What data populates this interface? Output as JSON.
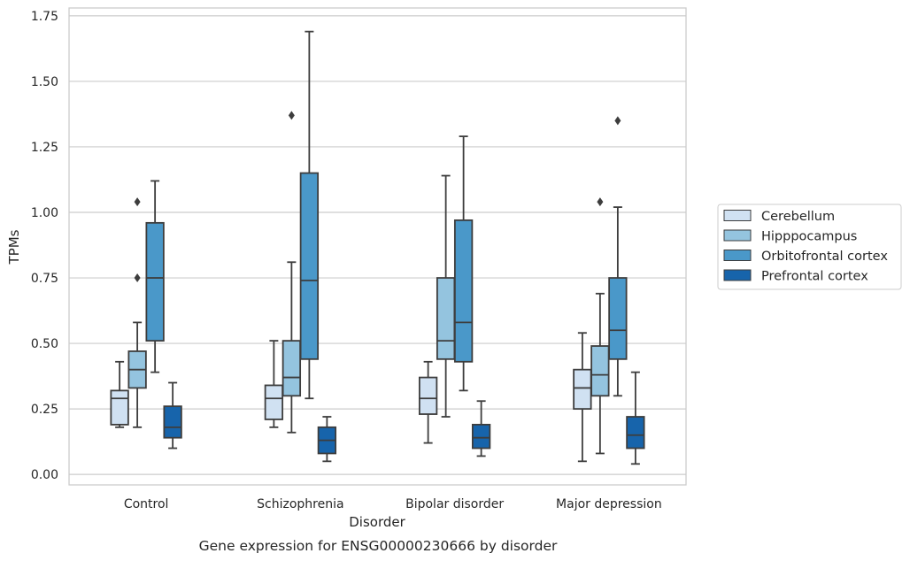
{
  "chart_data": {
    "type": "box",
    "caption": "Gene expression for ENSG00000230666 by disorder",
    "xlabel": "Disorder",
    "ylabel": "TPMs",
    "ylim": [
      -0.04,
      1.78
    ],
    "yticks": [
      0.0,
      0.25,
      0.5,
      0.75,
      1.0,
      1.25,
      1.5,
      1.75
    ],
    "ytick_labels": [
      "0.00",
      "0.25",
      "0.50",
      "0.75",
      "1.00",
      "1.25",
      "1.50",
      "1.75"
    ],
    "grid": "horizontal",
    "legend_position": "right",
    "categories": [
      "Control",
      "Schizophrenia",
      "Bipolar disorder",
      "Major depression"
    ],
    "series": [
      {
        "name": "Cerebellum",
        "color": "#d0e1f2",
        "boxes": [
          {
            "whislo": 0.18,
            "q1": 0.19,
            "med": 0.29,
            "q3": 0.32,
            "whishi": 0.43,
            "fliers": []
          },
          {
            "whislo": 0.18,
            "q1": 0.21,
            "med": 0.29,
            "q3": 0.34,
            "whishi": 0.51,
            "fliers": []
          },
          {
            "whislo": 0.12,
            "q1": 0.23,
            "med": 0.29,
            "q3": 0.37,
            "whishi": 0.43,
            "fliers": []
          },
          {
            "whislo": 0.05,
            "q1": 0.25,
            "med": 0.33,
            "q3": 0.4,
            "whishi": 0.54,
            "fliers": []
          }
        ]
      },
      {
        "name": "Hipppocampus",
        "color": "#94c4df",
        "boxes": [
          {
            "whislo": 0.18,
            "q1": 0.33,
            "med": 0.4,
            "q3": 0.47,
            "whishi": 0.58,
            "fliers": [
              0.75,
              1.04
            ]
          },
          {
            "whislo": 0.16,
            "q1": 0.3,
            "med": 0.37,
            "q3": 0.51,
            "whishi": 0.81,
            "fliers": [
              1.37
            ]
          },
          {
            "whislo": 0.22,
            "q1": 0.44,
            "med": 0.51,
            "q3": 0.75,
            "whishi": 1.14,
            "fliers": []
          },
          {
            "whislo": 0.08,
            "q1": 0.3,
            "med": 0.38,
            "q3": 0.49,
            "whishi": 0.69,
            "fliers": [
              1.04
            ]
          }
        ]
      },
      {
        "name": "Orbitofrontal cortex",
        "color": "#4a98c9",
        "boxes": [
          {
            "whislo": 0.39,
            "q1": 0.51,
            "med": 0.75,
            "q3": 0.96,
            "whishi": 1.12,
            "fliers": []
          },
          {
            "whislo": 0.29,
            "q1": 0.44,
            "med": 0.74,
            "q3": 1.15,
            "whishi": 1.69,
            "fliers": []
          },
          {
            "whislo": 0.32,
            "q1": 0.43,
            "med": 0.58,
            "q3": 0.97,
            "whishi": 1.29,
            "fliers": []
          },
          {
            "whislo": 0.3,
            "q1": 0.44,
            "med": 0.55,
            "q3": 0.75,
            "whishi": 1.02,
            "fliers": [
              1.35
            ]
          }
        ]
      },
      {
        "name": "Prefrontal cortex",
        "color": "#1764ab",
        "boxes": [
          {
            "whislo": 0.1,
            "q1": 0.14,
            "med": 0.18,
            "q3": 0.26,
            "whishi": 0.35,
            "fliers": []
          },
          {
            "whislo": 0.05,
            "q1": 0.08,
            "med": 0.13,
            "q3": 0.18,
            "whishi": 0.22,
            "fliers": []
          },
          {
            "whislo": 0.07,
            "q1": 0.1,
            "med": 0.14,
            "q3": 0.19,
            "whishi": 0.28,
            "fliers": []
          },
          {
            "whislo": 0.04,
            "q1": 0.1,
            "med": 0.15,
            "q3": 0.22,
            "whishi": 0.39,
            "fliers": []
          }
        ]
      }
    ]
  }
}
